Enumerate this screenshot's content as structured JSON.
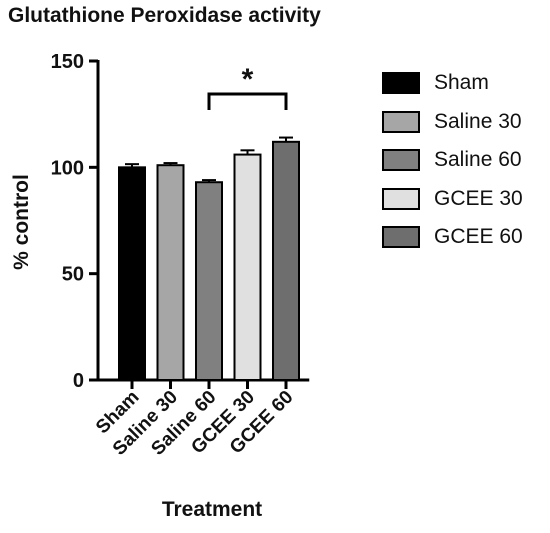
{
  "chart_data": {
    "type": "bar",
    "title": "Glutathione Peroxidase activity",
    "xlabel": "Treatment",
    "ylabel": "% control",
    "ylim": [
      0,
      150
    ],
    "yticks": [
      "0",
      "50",
      "100",
      "150"
    ],
    "categories": [
      "Sham",
      "Saline 30",
      "Saline 60",
      "GCEE 30",
      "GCEE 60"
    ],
    "values": [
      100,
      101,
      93,
      106,
      112
    ],
    "errors": [
      1.5,
      1.0,
      1.0,
      2.0,
      2.0
    ],
    "colors": [
      "#000000",
      "#a6a6a6",
      "#808080",
      "#e0e0e0",
      "#6e6e6e"
    ],
    "significance": {
      "from": "Saline 60",
      "to": "GCEE 60",
      "label": "*"
    },
    "legend": {
      "position": "right",
      "entries": [
        "Sham",
        "Saline 30",
        "Saline 60",
        "GCEE 30",
        "GCEE 60"
      ]
    }
  }
}
